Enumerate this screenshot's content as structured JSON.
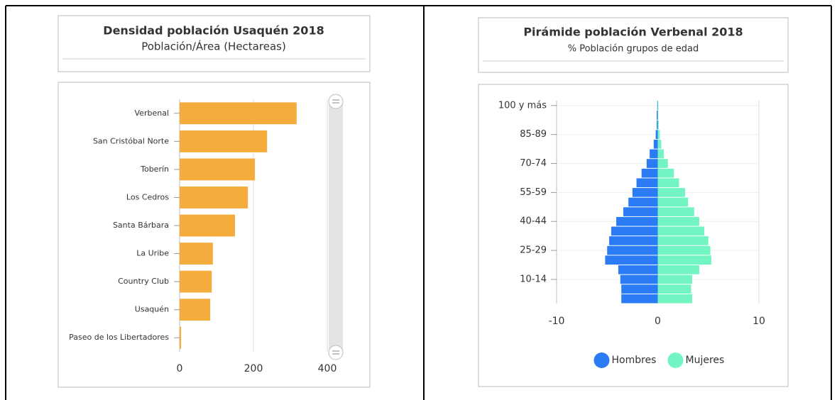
{
  "chart_data": [
    {
      "type": "bar",
      "orientation": "horizontal",
      "title": "Densidad población Usaquén 2018",
      "subtitle": "Población/Área (Hectareas)",
      "categories": [
        "Verbenal",
        "San Cristóbal Norte",
        "Toberín",
        "Los Cedros",
        "Santa Bárbara",
        "La Uribe",
        "Country Club",
        "Usaquén",
        "Paseo de los Libertadores"
      ],
      "values": [
        317,
        237,
        204,
        185,
        150,
        90,
        87,
        83,
        4
      ],
      "color": "#f4ac3d",
      "xlim": [
        0,
        400
      ],
      "xticks": [
        0,
        200,
        400
      ],
      "grid": true
    },
    {
      "type": "pyramid",
      "orientation": "horizontal",
      "title": "Pirámide población Verbenal 2018",
      "subtitle": "% Población grupos de edad",
      "categories": [
        "100 y más",
        null,
        null,
        "85-89",
        null,
        null,
        "70-74",
        null,
        null,
        "55-59",
        null,
        null,
        "40-44",
        null,
        null,
        "25-29",
        null,
        null,
        "10-14",
        null,
        null
      ],
      "series": [
        {
          "name": "Hombres",
          "color": "#2b7bf7",
          "values": [
            -0.05,
            -0.1,
            -0.1,
            -0.2,
            -0.4,
            -0.8,
            -1.1,
            -1.6,
            -2.1,
            -2.5,
            -2.9,
            -3.4,
            -4.1,
            -4.6,
            -4.8,
            -5.0,
            -5.2,
            -3.9,
            -3.7,
            -3.6,
            -3.6
          ]
        },
        {
          "name": "Mujeres",
          "color": "#72f5c3",
          "values": [
            0.05,
            0.05,
            0.1,
            0.2,
            0.35,
            0.6,
            1.0,
            1.6,
            2.1,
            2.7,
            3.0,
            3.6,
            4.1,
            4.6,
            5.0,
            5.2,
            5.3,
            4.1,
            3.4,
            3.3,
            3.4
          ]
        }
      ],
      "xlim": [
        -10,
        10
      ],
      "xticks": [
        -10,
        0,
        10
      ],
      "grid": true,
      "legend": "bottom"
    }
  ]
}
